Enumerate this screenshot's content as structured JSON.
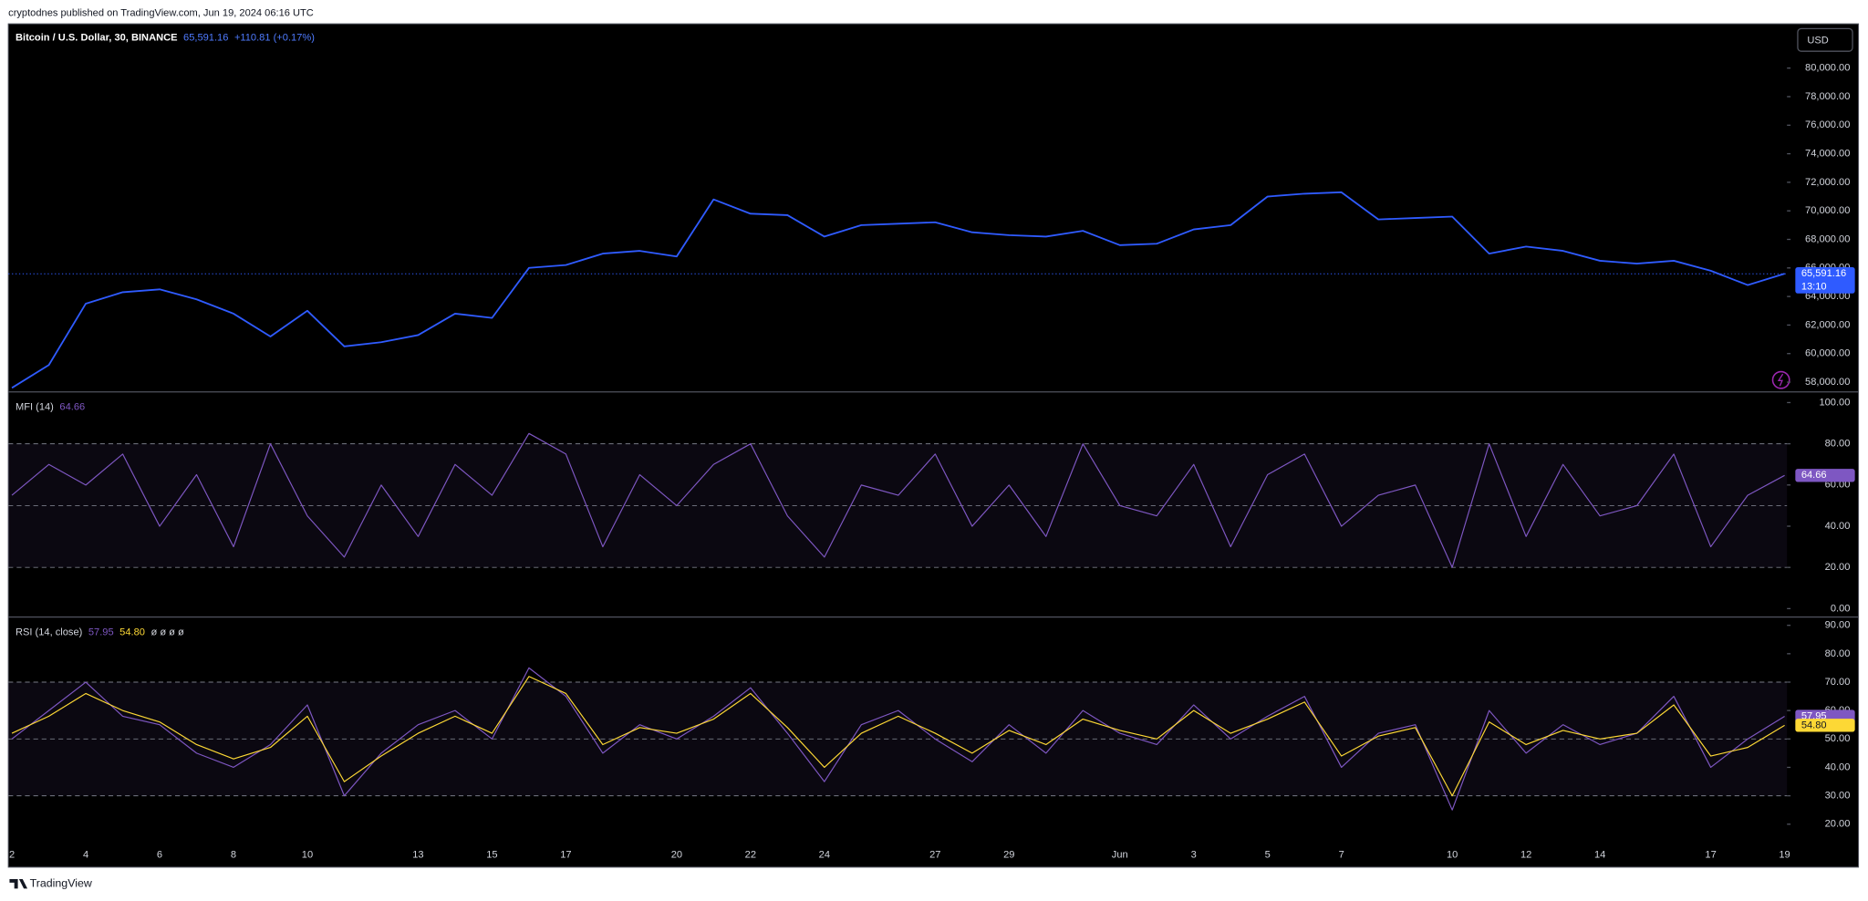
{
  "header": "cryptodnes published on TradingView.com, Jun 19, 2024 06:16 UTC",
  "footer": "TradingView",
  "currency": "USD",
  "x_axis": {
    "categories": [
      "2",
      null,
      "4",
      null,
      "6",
      null,
      "8",
      null,
      "10",
      null,
      null,
      "13",
      null,
      "15",
      null,
      "17",
      null,
      null,
      "20",
      null,
      "22",
      null,
      "24",
      null,
      null,
      "27",
      null,
      "29",
      null,
      null,
      "Jun",
      null,
      "3",
      null,
      "5",
      null,
      "7",
      null,
      null,
      "10",
      null,
      "12",
      null,
      "14",
      null,
      null,
      "17",
      null,
      "19"
    ]
  },
  "chart_data": [
    {
      "type": "line",
      "title": "Bitcoin / U.S. Dollar, 30, BINANCE",
      "change": "+110.81 (+0.17%)",
      "countdown": "13:10",
      "last_line": true,
      "ylim": [
        57400,
        83100
      ],
      "yticks": [
        {
          "value": 58000,
          "label": "58,000.00"
        },
        {
          "value": 60000,
          "label": "60,000.00"
        },
        {
          "value": 62000,
          "label": "62,000.00"
        },
        {
          "value": 64000,
          "label": "64,000.00"
        },
        {
          "value": 66000,
          "label": "66,000.00"
        },
        {
          "value": 68000,
          "label": "68,000.00"
        },
        {
          "value": 70000,
          "label": "70,000.00"
        },
        {
          "value": 72000,
          "label": "72,000.00"
        },
        {
          "value": 74000,
          "label": "74,000.00"
        },
        {
          "value": 76000,
          "label": "76,000.00"
        },
        {
          "value": 78000,
          "label": "78,000.00"
        },
        {
          "value": 80000,
          "label": "80,000.00"
        }
      ],
      "series": [
        {
          "color": "#2f5bff",
          "last_label": "65,591.16",
          "values": [
            57600,
            59200,
            63500,
            64300,
            64500,
            63800,
            62800,
            61200,
            63000,
            60500,
            60800,
            61300,
            62800,
            62500,
            66000,
            66200,
            67000,
            67200,
            66800,
            70800,
            69800,
            69700,
            68200,
            69000,
            69100,
            69200,
            68500,
            68300,
            68200,
            68600,
            67600,
            67700,
            68700,
            69000,
            71000,
            71200,
            71300,
            69400,
            69500,
            69600,
            67000,
            67500,
            67200,
            66500,
            66300,
            66500,
            65800,
            64800,
            65591.16
          ]
        }
      ]
    },
    {
      "type": "line",
      "title": "MFI (14)",
      "ylim": [
        -3.5,
        104.6
      ],
      "levels": [
        20,
        50,
        80
      ],
      "yticks": [
        {
          "value": 0,
          "label": "0.00"
        },
        {
          "value": 20,
          "label": "20.00"
        },
        {
          "value": 40,
          "label": "40.00"
        },
        {
          "value": 60,
          "label": "60.00"
        },
        {
          "value": 80,
          "label": "80.00"
        },
        {
          "value": 100,
          "label": "100.00"
        }
      ],
      "series": [
        {
          "color": "#7e57c2",
          "last_label": "64.66",
          "values": [
            55,
            70,
            60,
            75,
            40,
            65,
            30,
            80,
            45,
            25,
            60,
            35,
            70,
            55,
            85,
            75,
            30,
            65,
            50,
            70,
            80,
            45,
            25,
            60,
            55,
            75,
            40,
            60,
            35,
            80,
            50,
            45,
            70,
            30,
            65,
            75,
            40,
            55,
            60,
            20,
            80,
            35,
            70,
            45,
            50,
            75,
            30,
            55,
            64.66
          ]
        }
      ]
    },
    {
      "type": "line",
      "title": "RSI (14, close)",
      "extra": "ø ø ø ø",
      "ylim": [
        5.3,
        92.5
      ],
      "levels": [
        30,
        50,
        70
      ],
      "yticks": [
        {
          "value": 20,
          "label": "20.00"
        },
        {
          "value": 30,
          "label": "30.00"
        },
        {
          "value": 40,
          "label": "40.00"
        },
        {
          "value": 50,
          "label": "50.00"
        },
        {
          "value": 60,
          "label": "60.00"
        },
        {
          "value": 70,
          "label": "70.00"
        },
        {
          "value": 80,
          "label": "80.00"
        },
        {
          "value": 90,
          "label": "90.00"
        }
      ],
      "series": [
        {
          "color": "#7e57c2",
          "last_label": "57.95",
          "values": [
            50,
            60,
            70,
            58,
            55,
            45,
            40,
            48,
            62,
            30,
            45,
            55,
            60,
            50,
            75,
            65,
            45,
            55,
            50,
            58,
            68,
            52,
            35,
            55,
            60,
            50,
            42,
            55,
            45,
            60,
            52,
            48,
            62,
            50,
            58,
            65,
            40,
            52,
            55,
            25,
            60,
            45,
            55,
            48,
            52,
            65,
            40,
            50,
            57.95
          ]
        },
        {
          "color": "#fdd835",
          "last_label": "54.80",
          "values": [
            52,
            58,
            66,
            60,
            56,
            48,
            43,
            47,
            58,
            35,
            44,
            52,
            58,
            52,
            72,
            66,
            48,
            54,
            52,
            57,
            66,
            54,
            40,
            52,
            58,
            52,
            45,
            53,
            48,
            57,
            53,
            50,
            60,
            52,
            57,
            63,
            44,
            51,
            54,
            30,
            56,
            48,
            53,
            50,
            52,
            62,
            44,
            47,
            54.8
          ]
        }
      ]
    }
  ]
}
